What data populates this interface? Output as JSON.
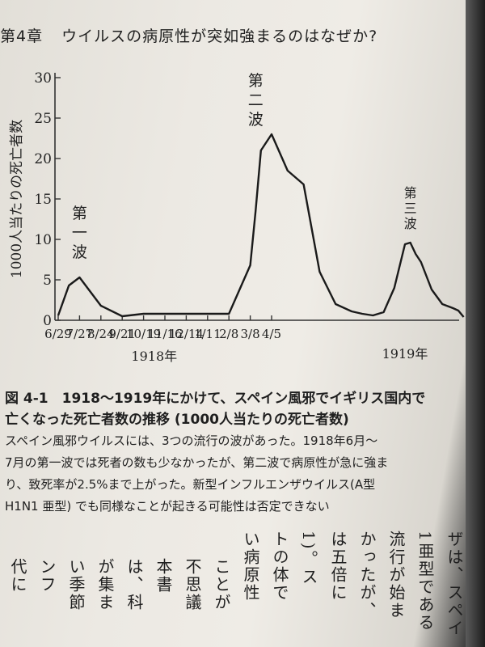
{
  "header": {
    "chapter": "第4章",
    "title": "ウイルスの病原性が突如強まるのはなぜか?"
  },
  "chart_data": {
    "type": "line",
    "ylabel": "1000人当たりの死亡者数",
    "ylim": [
      0,
      30
    ],
    "yticks": [
      0,
      5,
      10,
      15,
      20,
      25,
      30
    ],
    "x_tick_labels": [
      "6/29",
      "7/27",
      "8/24",
      "9/21",
      "10/19",
      "11/16",
      "12/14",
      "1/11",
      "2/8",
      "3/8",
      "4/5"
    ],
    "x_group_labels": [
      "1918年",
      "1919年"
    ],
    "series": [
      {
        "x": [
          0,
          2,
          4,
          8,
          12,
          16,
          20,
          24,
          28,
          32,
          34,
          36,
          37,
          38,
          40,
          43,
          46,
          49,
          52,
          55,
          57,
          59,
          61,
          63,
          65,
          66,
          67,
          68,
          70,
          72,
          74,
          75,
          76
        ],
        "values": [
          0.6,
          4.3,
          5.3,
          1.8,
          0.5,
          0.8,
          0.8,
          0.8,
          0.8,
          0.8,
          3.8,
          6.8,
          13.5,
          21,
          23,
          18.5,
          16.8,
          6,
          2,
          1.1,
          0.8,
          0.6,
          1,
          4,
          9.4,
          9.6,
          8.2,
          7.2,
          3.8,
          2,
          1.5,
          1.2,
          0.4
        ]
      }
    ],
    "annotations": [
      {
        "text": "第一波"
      },
      {
        "text": "第二波"
      },
      {
        "text": "第三波"
      }
    ]
  },
  "caption": {
    "title_line1": "図 4-1　1918〜1919年にかけて、スペイン風邪でイギリス国内で",
    "title_line2": "亡くなった死亡者数の推移 (1000人当たりの死亡者数)",
    "body": [
      "スペイン風邪ウイルスには、3つの流行の波があった。1918年6月〜",
      "7月の第一波では死者の数も少なかったが、第二波で病原性が急に強ま",
      "り、致死率が2.5%まで上がった。新型インフルエンザウイルス(A型",
      "H1N1 亜型) でも同様なことが起きる可能性は否定できない"
    ]
  },
  "vertical_text": [
    "ザは、スペイ",
    "1亜型である",
    "流行が始ま",
    "かったが、",
    "は五倍に",
    "1)。ス",
    "トの体で",
    "い病原性",
    "ことが",
    "不思議",
    "本書",
    "は、科",
    "が集ま",
    "い季節",
    "ンフ",
    "代に"
  ]
}
